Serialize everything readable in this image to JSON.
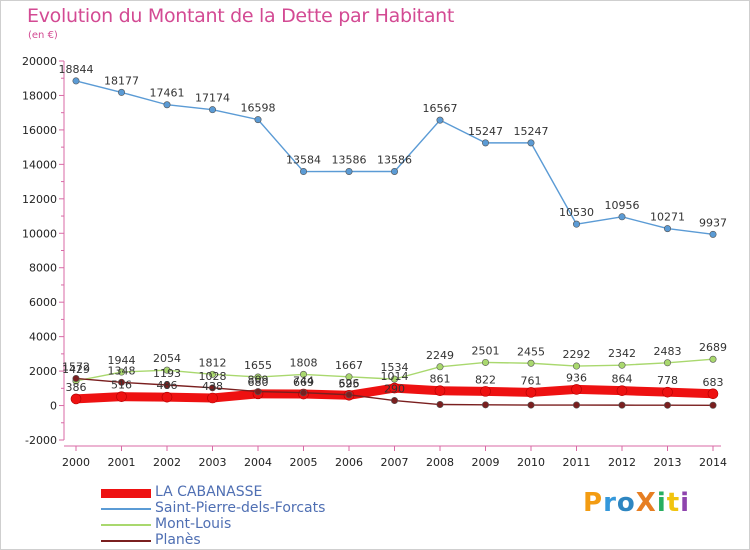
{
  "title": "Evolution du Montant de la Dette par Habitant",
  "unit": "(en €)",
  "logo": {
    "text": "ProXiti",
    "letters": [
      "P",
      "r",
      "o",
      "X",
      "i",
      "t",
      "i"
    ],
    "colors": [
      "#f39c12",
      "#3498db",
      "#2e86c1",
      "#e67e22",
      "#27ae60",
      "#f1c40f",
      "#8e44ad"
    ]
  },
  "chart_data": {
    "type": "line",
    "x": [
      "2000",
      "2001",
      "2002",
      "2003",
      "2004",
      "2005",
      "2006",
      "2007",
      "2008",
      "2009",
      "2010",
      "2011",
      "2012",
      "2013",
      "2014"
    ],
    "ylim": [
      -2000,
      20000
    ],
    "yticks": [
      "-2000",
      "0",
      "2000",
      "4000",
      "6000",
      "8000",
      "10000",
      "12000",
      "14000",
      "16000",
      "18000",
      "20000"
    ],
    "grid": false,
    "legend_position": "bottom-left",
    "series": [
      {
        "name": "LA CABANASSE",
        "color": "#ee1111",
        "values": [
          386,
          516,
          486,
          438,
          680,
          669,
          595,
          1014,
          861,
          822,
          761,
          936,
          864,
          778,
          683
        ],
        "labels": [
          "386",
          "516",
          "486",
          "438",
          "680",
          "669",
          "595",
          "1014",
          "861",
          "822",
          "761",
          "936",
          "864",
          "778",
          "683"
        ]
      },
      {
        "name": "Saint-Pierre-dels-Forcats",
        "color": "#5b9bd5",
        "values": [
          18844,
          18177,
          17461,
          17174,
          16598,
          13584,
          13586,
          13586,
          16567,
          15247,
          15247,
          10530,
          10956,
          10271,
          9937
        ],
        "labels": [
          "18844",
          "18177",
          "17461",
          "17174",
          "16598",
          "13584",
          "13586",
          "13586",
          "16567",
          "15247",
          "15247",
          "10530",
          "10956",
          "10271",
          "9937"
        ]
      },
      {
        "name": "Mont-Louis",
        "color": "#a9d86e",
        "values": [
          1429,
          1944,
          2054,
          1812,
          1655,
          1808,
          1667,
          1534,
          2249,
          2501,
          2455,
          2292,
          2342,
          2483,
          2689
        ],
        "labels": [
          "1429",
          "1944",
          "2054",
          "1812",
          "1655",
          "1808",
          "1667",
          "1534",
          "2249",
          "2501",
          "2455",
          "2292",
          "2342",
          "2483",
          "2689"
        ]
      },
      {
        "name": "Planès",
        "color": "#7a1f1f",
        "values": [
          1572,
          1348,
          1193,
          1028,
          809,
          744,
          626,
          290,
          60,
          42,
          28,
          30,
          25,
          20,
          15
        ],
        "labels": [
          "1572",
          "1348",
          "1193",
          "1028",
          "809",
          "744",
          "626",
          "290",
          "",
          "",
          "",
          "",
          "",
          "",
          ""
        ]
      }
    ]
  }
}
